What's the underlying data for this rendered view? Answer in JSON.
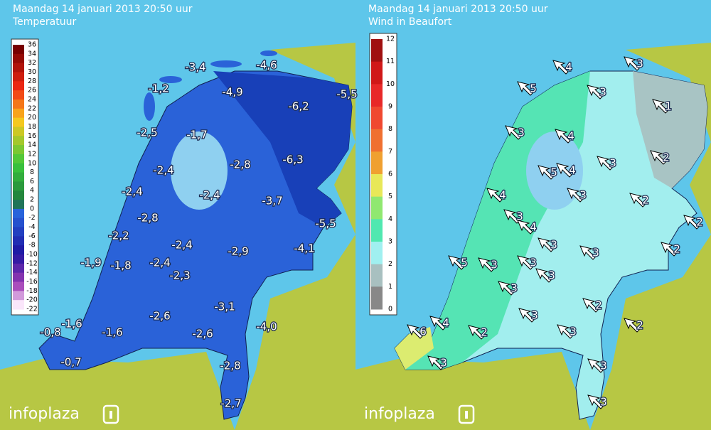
{
  "panels": [
    {
      "title": "Maandag 14 januari 2013 20:50 uur",
      "subtitle": "Temperatuur",
      "scale_labels": [
        "36",
        "34",
        "32",
        "30",
        "28",
        "26",
        "24",
        "22",
        "20",
        "18",
        "16",
        "14",
        "12",
        "10",
        "8",
        "6",
        "4",
        "2",
        "0",
        "-2",
        "-4",
        "-6",
        "-8",
        "-10",
        "-12",
        "-14",
        "-16",
        "-18",
        "-20",
        "-22"
      ],
      "stations": [
        "-3,4",
        "-1,2",
        "-4,6",
        "-4,9",
        "-5,5",
        "-6,2",
        "-2,5",
        "-1,7",
        "-2,8",
        "-6,3",
        "-2,4",
        "-2,4",
        "-2,4",
        "-3,7",
        "-2,8",
        "-5,5",
        "-2,2",
        "-2,4",
        "-2,9",
        "-4,1",
        "-1,9",
        "-1,8",
        "-2,4",
        "-2,3",
        "-3,1",
        "-4,0",
        "-2,6",
        "-0,8",
        "-1,6",
        "-1,6",
        "-2,6",
        "-0,7",
        "-2,8",
        "-2,7"
      ],
      "logo": "infoplaza"
    },
    {
      "title": "Maandag 14 januari 2013 20:50 uur",
      "subtitle": "Wind in Beaufort",
      "scale_labels": [
        "12",
        "11",
        "10",
        "9",
        "8",
        "7",
        "6",
        "5",
        "4",
        "3",
        "2",
        "1",
        "0"
      ],
      "stations": [
        "4",
        "3",
        "5",
        "3",
        "1",
        "3",
        "4",
        "4",
        "3",
        "2",
        "5",
        "4",
        "3",
        "2",
        "3",
        "4",
        "2",
        "3",
        "2",
        "3",
        "5",
        "3",
        "3",
        "3",
        "3",
        "2",
        "3",
        "4",
        "6",
        "2",
        "3",
        "2",
        "3",
        "3",
        "3"
      ],
      "logo": "infoplaza"
    }
  ]
}
